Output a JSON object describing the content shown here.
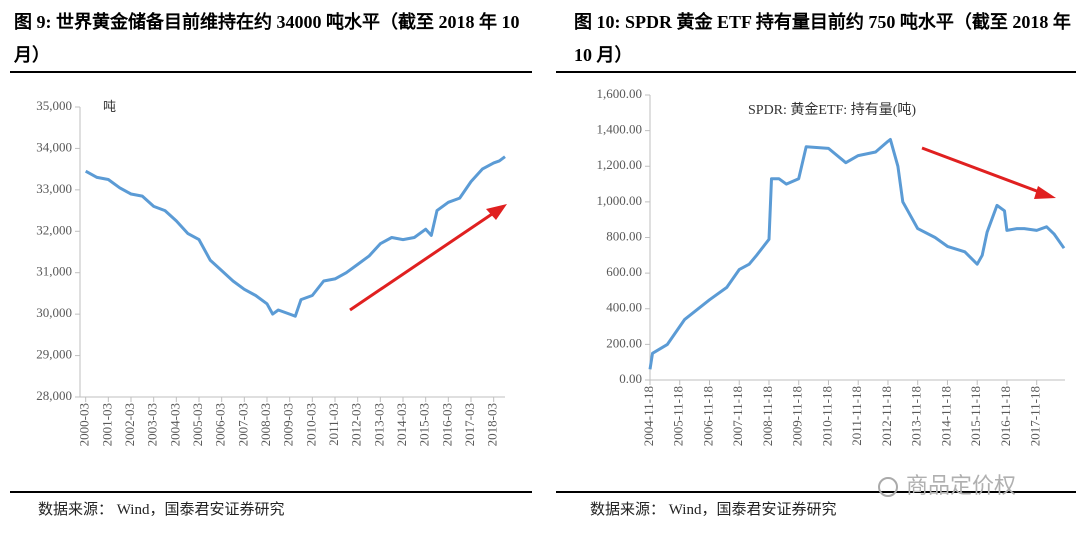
{
  "chart_data": [
    {
      "type": "line",
      "title": "图 9: 世界黄金储备目前维持在约 34000 吨水平（截至 2018 年 10 月）",
      "y_label": "吨",
      "source": "数据来源： Wind，国泰君安证券研究",
      "x": [
        "2000-03",
        "2000-09",
        "2001-03",
        "2001-09",
        "2002-03",
        "2002-09",
        "2003-03",
        "2003-09",
        "2004-03",
        "2004-09",
        "2005-03",
        "2005-09",
        "2006-03",
        "2006-09",
        "2007-03",
        "2007-09",
        "2008-03",
        "2008-06",
        "2008-09",
        "2009-03",
        "2009-06",
        "2009-09",
        "2010-03",
        "2010-09",
        "2011-03",
        "2011-09",
        "2012-03",
        "2012-09",
        "2013-03",
        "2013-09",
        "2014-03",
        "2014-09",
        "2015-03",
        "2015-06",
        "2015-09",
        "2016-03",
        "2016-09",
        "2017-03",
        "2017-09",
        "2018-03",
        "2018-06",
        "2018-09"
      ],
      "series": [
        {
          "color": "#5b9bd5",
          "values": [
            33450,
            33300,
            33250,
            33050,
            32900,
            32850,
            32600,
            32500,
            32250,
            31950,
            31800,
            31300,
            31050,
            30800,
            30600,
            30450,
            30250,
            30000,
            30100,
            30000,
            29950,
            30350,
            30450,
            30800,
            30850,
            31000,
            31200,
            31400,
            31700,
            31850,
            31800,
            31850,
            32050,
            31900,
            32500,
            32700,
            32800,
            33200,
            33500,
            33650,
            33700,
            33800
          ]
        }
      ],
      "xlim": [
        "1999-12",
        "2018-09"
      ],
      "xticks": [
        "2000-03",
        "2001-03",
        "2002-03",
        "2003-03",
        "2004-03",
        "2005-03",
        "2006-03",
        "2007-03",
        "2008-03",
        "2009-03",
        "2010-03",
        "2011-03",
        "2012-03",
        "2013-03",
        "2014-03",
        "2015-03",
        "2016-03",
        "2017-03",
        "2018-03"
      ],
      "ylim": [
        28000,
        35000
      ],
      "yticks": [
        {
          "value": 28000,
          "label": "28,000"
        },
        {
          "value": 29000,
          "label": "29,000"
        },
        {
          "value": 30000,
          "label": "30,000"
        },
        {
          "value": 31000,
          "label": "31,000"
        },
        {
          "value": 32000,
          "label": "32,000"
        },
        {
          "value": 33000,
          "label": "33,000"
        },
        {
          "value": 34000,
          "label": "34,000"
        },
        {
          "value": 35000,
          "label": "35,000"
        }
      ],
      "grid": false
    },
    {
      "type": "line",
      "title": "图 10: SPDR 黄金 ETF 持有量目前约 750 吨水平（截至 2018 年 10 月）",
      "source": "数据来源： Wind，国泰君安证券研究",
      "x": [
        "2004-11-18",
        "2004-12-18",
        "2005-06-18",
        "2006-01-18",
        "2006-11-18",
        "2007-06-18",
        "2007-11-18",
        "2008-03-18",
        "2008-06-18",
        "2008-11-18",
        "2008-12-18",
        "2009-03-18",
        "2009-06-18",
        "2009-11-18",
        "2010-02-18",
        "2010-11-18",
        "2011-06-18",
        "2011-11-18",
        "2012-06-18",
        "2012-11-18",
        "2012-12-18",
        "2013-03-18",
        "2013-05-18",
        "2013-07-18",
        "2013-11-18",
        "2014-06-18",
        "2014-11-18",
        "2015-06-18",
        "2015-11-18",
        "2016-01-18",
        "2016-03-18",
        "2016-07-18",
        "2016-10-18",
        "2016-11-18",
        "2017-03-18",
        "2017-06-18",
        "2017-11-18",
        "2018-03-18",
        "2018-06-18",
        "2018-10-18"
      ],
      "series": [
        {
          "name": "SPDR: 黄金ETF: 持有量(吨)",
          "color": "#5b9bd5",
          "values": [
            60,
            150,
            200,
            340,
            450,
            520,
            620,
            650,
            700,
            790,
            1130,
            1130,
            1100,
            1130,
            1310,
            1300,
            1220,
            1260,
            1280,
            1340,
            1350,
            1200,
            1000,
            950,
            850,
            800,
            750,
            720,
            650,
            700,
            830,
            980,
            950,
            840,
            850,
            850,
            840,
            860,
            820,
            740
          ]
        }
      ],
      "xlim": [
        "2004-11-18",
        "2018-10-31"
      ],
      "xticks": [
        "2004-11-18",
        "2005-11-18",
        "2006-11-18",
        "2007-11-18",
        "2008-11-18",
        "2009-11-18",
        "2010-11-18",
        "2011-11-18",
        "2012-11-18",
        "2013-11-18",
        "2014-11-18",
        "2015-11-18",
        "2016-11-18",
        "2017-11-18"
      ],
      "ylim": [
        0,
        1600
      ],
      "yticks": [
        {
          "value": 0,
          "label": "0.00"
        },
        {
          "value": 200,
          "label": "200.00"
        },
        {
          "value": 400,
          "label": "400.00"
        },
        {
          "value": 600,
          "label": "600.00"
        },
        {
          "value": 800,
          "label": "800.00"
        },
        {
          "value": 1000,
          "label": "1,000.00"
        },
        {
          "value": 1200,
          "label": "1,200.00"
        },
        {
          "value": 1400,
          "label": "1,400.00"
        },
        {
          "value": 1600,
          "label": "1,600.00"
        }
      ],
      "grid": false
    }
  ],
  "watermark": "商品定价权"
}
